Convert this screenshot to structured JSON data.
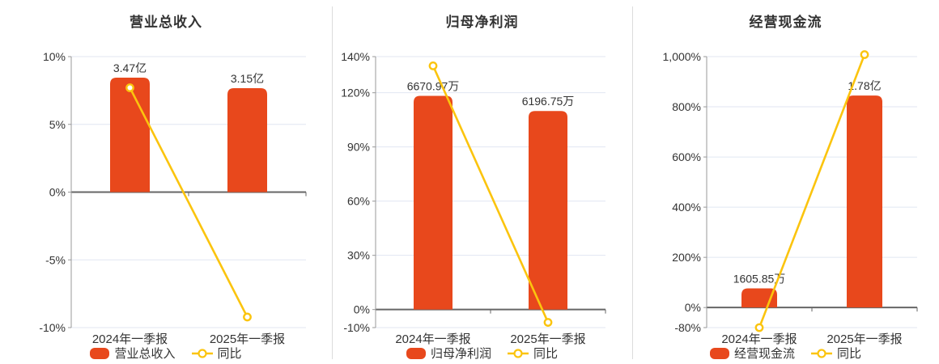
{
  "page": {
    "background": "#ffffff"
  },
  "colors": {
    "bar": "#E8481C",
    "line": "#FBC40E",
    "marker_fill": "#FFFFFF",
    "grid": "#E1E6F2",
    "zero_line": "#666666",
    "axis": "#999999",
    "text": "#333333",
    "divider": "#DCDCDC"
  },
  "chart_data": [
    {
      "type": "bar",
      "title": "营业总收入",
      "categories": [
        "2024年一季报",
        "2025年一季报"
      ],
      "bar_series": {
        "name": "营业总收入",
        "values": [
          3.47,
          3.15
        ],
        "unit": "亿",
        "labels": [
          "3.47亿",
          "3.15亿"
        ]
      },
      "line_series": {
        "name": "同比",
        "values_pct": [
          7.7,
          -9.22
        ]
      },
      "y_axis": {
        "min": -10,
        "max": 10,
        "ticks": [
          {
            "value": 10,
            "label": "10%"
          },
          {
            "value": 5,
            "label": "5%"
          },
          {
            "value": 0,
            "label": "0%"
          },
          {
            "value": -5,
            "label": "-5%"
          },
          {
            "value": -10,
            "label": "-10%"
          }
        ]
      },
      "legend": [
        "营业总收入",
        "同比"
      ],
      "grid_on": true,
      "legend_position": "bottom"
    },
    {
      "type": "bar",
      "title": "归母净利润",
      "categories": [
        "2024年一季报",
        "2025年一季报"
      ],
      "bar_series": {
        "name": "归母净利润",
        "values": [
          6670.97,
          6196.75
        ],
        "unit": "万",
        "labels": [
          "6670.97万",
          "6196.75万"
        ]
      },
      "line_series": {
        "name": "同比",
        "values_pct": [
          134.9,
          -7.11
        ]
      },
      "y_axis": {
        "min": -10,
        "max": 140,
        "ticks": [
          {
            "value": 140,
            "label": "140%"
          },
          {
            "value": 120,
            "label": "120%"
          },
          {
            "value": 90,
            "label": "90%"
          },
          {
            "value": 60,
            "label": "60%"
          },
          {
            "value": 30,
            "label": "30%"
          },
          {
            "value": 0,
            "label": "0%"
          },
          {
            "value": -10,
            "label": "-10%"
          }
        ]
      },
      "legend": [
        "归母净利润",
        "同比"
      ],
      "grid_on": true,
      "legend_position": "bottom"
    },
    {
      "type": "bar",
      "title": "经营现金流",
      "categories": [
        "2024年一季报",
        "2025年一季报"
      ],
      "bar_series": {
        "name": "经营现金流",
        "values": [
          1605.85,
          17800
        ],
        "unit": "万",
        "labels": [
          "1605.85万",
          "1.78亿"
        ]
      },
      "line_series": {
        "name": "同比",
        "values_pct": [
          -80,
          1008
        ]
      },
      "y_axis": {
        "min": -80,
        "max": 1000,
        "ticks": [
          {
            "value": 1000,
            "label": "1,000%"
          },
          {
            "value": 800,
            "label": "800%"
          },
          {
            "value": 600,
            "label": "600%"
          },
          {
            "value": 400,
            "label": "400%"
          },
          {
            "value": 200,
            "label": "200%"
          },
          {
            "value": 0,
            "label": "0%"
          },
          {
            "value": -80,
            "label": "-80%"
          }
        ]
      },
      "legend": [
        "经营现金流",
        "同比"
      ],
      "grid_on": true,
      "legend_position": "bottom"
    }
  ]
}
